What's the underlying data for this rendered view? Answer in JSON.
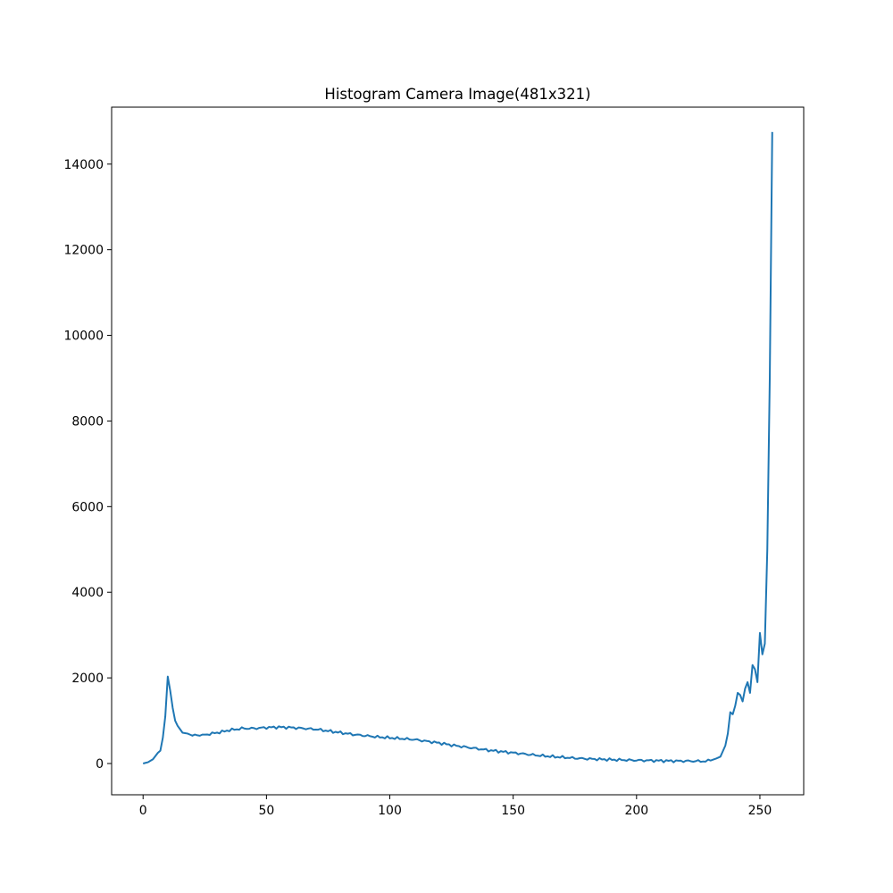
{
  "chart_data": {
    "type": "line",
    "title": "Histogram Camera Image(481x321)",
    "xlabel": "",
    "ylabel": "",
    "xlim": [
      -12.75,
      267.75
    ],
    "ylim": [
      -730,
      15330
    ],
    "grid": false,
    "legend": "none",
    "x_ticks": [
      0,
      50,
      100,
      150,
      200,
      250
    ],
    "x_tick_labels": [
      "0",
      "50",
      "100",
      "150",
      "200",
      "250"
    ],
    "y_ticks": [
      0,
      2000,
      4000,
      6000,
      8000,
      10000,
      12000,
      14000
    ],
    "y_tick_labels": [
      "0",
      "2000",
      "4000",
      "6000",
      "8000",
      "10000",
      "12000",
      "14000"
    ],
    "series": [
      {
        "color": "#1f77b4",
        "anchors": [
          [
            0,
            0
          ],
          [
            2,
            30
          ],
          [
            4,
            100
          ],
          [
            6,
            250
          ],
          [
            7,
            300
          ],
          [
            8,
            600
          ],
          [
            9,
            1100
          ],
          [
            10,
            2030
          ],
          [
            11,
            1700
          ],
          [
            12,
            1300
          ],
          [
            13,
            1000
          ],
          [
            14,
            880
          ],
          [
            15,
            800
          ],
          [
            16,
            720
          ],
          [
            18,
            700
          ],
          [
            20,
            650
          ],
          [
            22,
            670
          ],
          [
            24,
            660
          ],
          [
            26,
            680
          ],
          [
            28,
            700
          ],
          [
            30,
            720
          ],
          [
            32,
            740
          ],
          [
            35,
            780
          ],
          [
            38,
            800
          ],
          [
            40,
            820
          ],
          [
            45,
            820
          ],
          [
            50,
            840
          ],
          [
            55,
            850
          ],
          [
            60,
            840
          ],
          [
            65,
            820
          ],
          [
            70,
            800
          ],
          [
            75,
            760
          ],
          [
            80,
            720
          ],
          [
            85,
            680
          ],
          [
            90,
            650
          ],
          [
            95,
            620
          ],
          [
            100,
            600
          ],
          [
            105,
            580
          ],
          [
            110,
            560
          ],
          [
            115,
            520
          ],
          [
            120,
            480
          ],
          [
            125,
            430
          ],
          [
            130,
            390
          ],
          [
            135,
            350
          ],
          [
            140,
            310
          ],
          [
            145,
            280
          ],
          [
            150,
            250
          ],
          [
            155,
            220
          ],
          [
            160,
            190
          ],
          [
            165,
            165
          ],
          [
            170,
            145
          ],
          [
            175,
            125
          ],
          [
            180,
            110
          ],
          [
            185,
            100
          ],
          [
            190,
            90
          ],
          [
            195,
            82
          ],
          [
            200,
            75
          ],
          [
            205,
            70
          ],
          [
            210,
            65
          ],
          [
            215,
            60
          ],
          [
            220,
            58
          ],
          [
            225,
            55
          ],
          [
            228,
            52
          ],
          [
            230,
            70
          ],
          [
            232,
            110
          ],
          [
            234,
            160
          ],
          [
            236,
            420
          ],
          [
            237,
            700
          ],
          [
            238,
            1200
          ],
          [
            239,
            1150
          ],
          [
            240,
            1350
          ],
          [
            241,
            1650
          ],
          [
            242,
            1600
          ],
          [
            243,
            1450
          ],
          [
            244,
            1750
          ],
          [
            245,
            1900
          ],
          [
            246,
            1650
          ],
          [
            247,
            2300
          ],
          [
            248,
            2200
          ],
          [
            249,
            1900
          ],
          [
            250,
            3050
          ],
          [
            251,
            2550
          ],
          [
            252,
            2800
          ],
          [
            253,
            5000
          ],
          [
            254,
            9000
          ],
          [
            255,
            14750
          ]
        ]
      }
    ]
  }
}
